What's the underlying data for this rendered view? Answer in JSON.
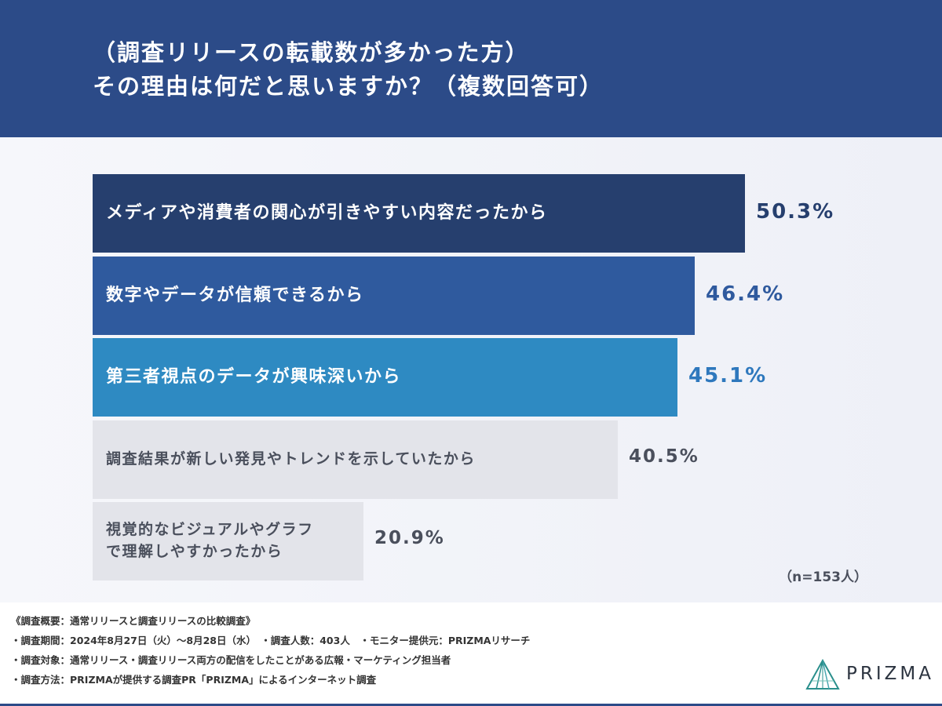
{
  "header": {
    "title_line1": "（調査リリースの転載数が多かった方）",
    "title_line2": "その理由は何だと思いますか？（複数回答可）"
  },
  "chart_data": {
    "type": "bar",
    "orientation": "horizontal",
    "categories": [
      [
        "メディアや消費者の関心が引きやすい内容だったから"
      ],
      [
        "数字やデータが信頼できるから"
      ],
      [
        "第三者視点のデータが興味深いから"
      ],
      [
        "調査結果が新しい発見やトレンドを示していたから"
      ],
      [
        "視覚的なビジュアルやグラフ",
        "で理解しやすかったから"
      ]
    ],
    "values": [
      50.3,
      46.4,
      45.1,
      40.5,
      20.9
    ],
    "value_labels": [
      "50.3%",
      "46.4%",
      "45.1%",
      "40.5%",
      "20.9%"
    ],
    "xlim": [
      0,
      100
    ],
    "unit": "%",
    "bar_colors": [
      "#263f6e",
      "#2f5a9e",
      "#2e8ac2",
      "#e3e4ea",
      "#e3e4ea"
    ],
    "label_colors": [
      "#ffffff",
      "#ffffff",
      "#ffffff",
      "#4a4f5c",
      "#4a4f5c"
    ],
    "value_colors": [
      "#263f6e",
      "#2f5a9e",
      "#2e78bd",
      "#4a4f5c",
      "#4a4f5c"
    ],
    "sample_note": "（n=153人）"
  },
  "footer": {
    "notes": [
      "《調査概要：通常リリースと調査リリースの比較調査》",
      "・調査期間：2024年8月27日（火）～8月28日（水）　・調査人数：403人　・モニター提供元：PRIZMAリサーチ",
      "・調査対象：通常リリース・調査リリース両方の配信をしたことがある広報・マーケティング担当者",
      "・調査方法：PRIZMAが提供する調査PR「PRIZMA」によるインターネット調査"
    ],
    "logo_text": "PRIZMA"
  }
}
